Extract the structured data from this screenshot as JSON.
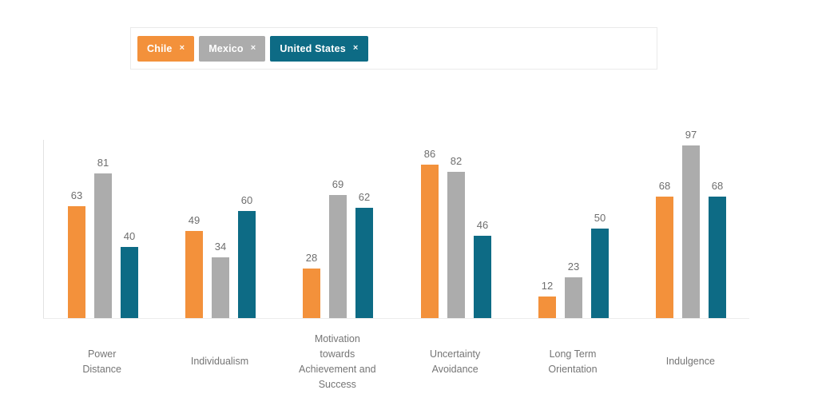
{
  "tag_panel": {
    "remove_icon": "×",
    "border_color": "#EAEAEA",
    "tags": [
      {
        "label": "Chile",
        "color": "#F3913B"
      },
      {
        "label": "Mexico",
        "color": "#ACACAC"
      },
      {
        "label": "United States",
        "color": "#0D6B85"
      }
    ]
  },
  "chart_data": {
    "type": "bar",
    "categories": [
      "Power Distance",
      "Individualism",
      "Motivation towards Achievement and Success",
      "Uncertainty Avoidance",
      "Long Term Orientation",
      "Indulgence"
    ],
    "category_display": [
      "Power\nDistance",
      "Individualism",
      "Motivation\ntowards\nAchievement and\nSuccess",
      "Uncertainty\nAvoidance",
      "Long Term\nOrientation",
      "Indulgence"
    ],
    "series": [
      {
        "name": "Chile",
        "color": "#F3913B",
        "values": [
          63,
          49,
          28,
          86,
          12,
          68
        ]
      },
      {
        "name": "Mexico",
        "color": "#ACACAC",
        "values": [
          81,
          34,
          69,
          82,
          23,
          97
        ]
      },
      {
        "name": "United States",
        "color": "#0D6B85",
        "values": [
          40,
          60,
          62,
          46,
          50,
          68
        ]
      }
    ],
    "ylim": [
      0,
      100
    ],
    "grid": false,
    "legend_position": "top-tags",
    "value_labels": true,
    "value_label_color": "#6E6E6E",
    "tick_label_color": "#757575",
    "axis_color": "#E2E2E2"
  }
}
